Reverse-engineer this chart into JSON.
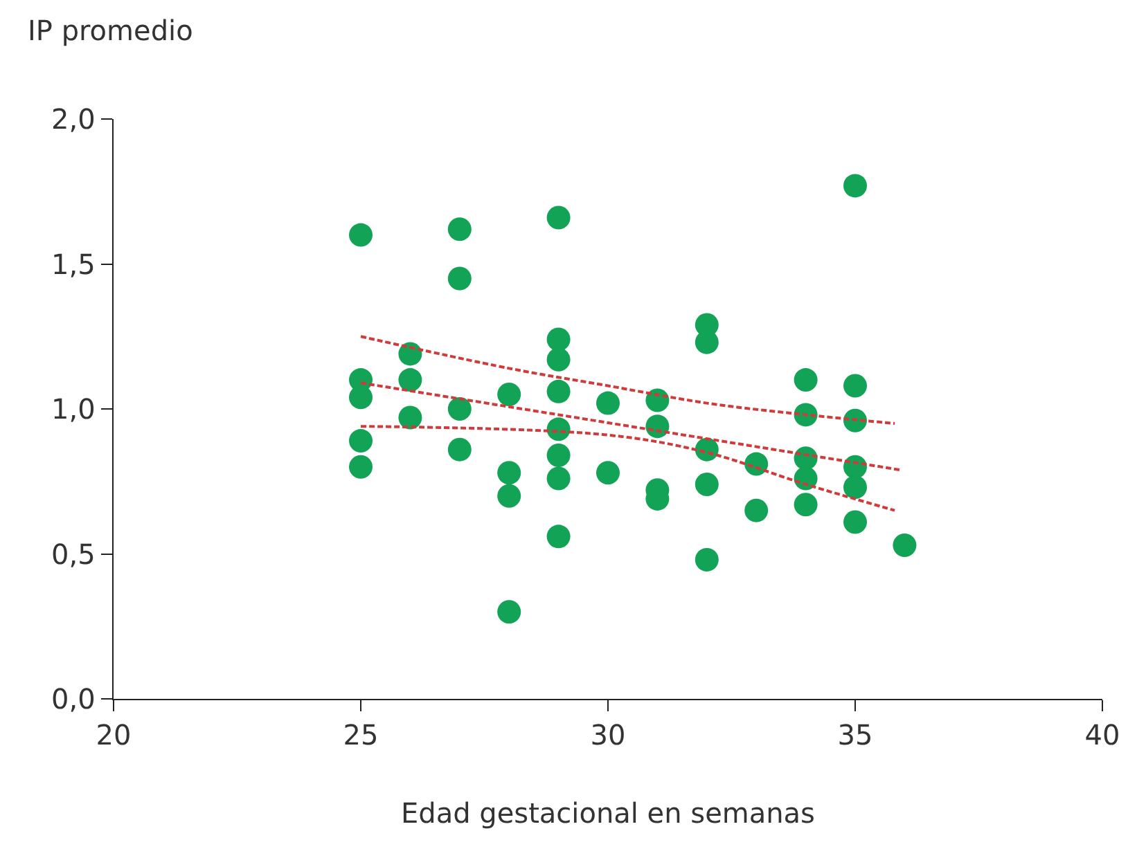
{
  "chart_data": {
    "type": "scatter",
    "xlabel": "Edad gestacional en semanas",
    "ylabel": "IP promedio",
    "xlim": [
      20,
      40
    ],
    "xticks": [
      20,
      25,
      30,
      35,
      40
    ],
    "ylim": [
      0,
      2
    ],
    "yticks": [
      {
        "value": 0,
        "label": "0,0"
      },
      {
        "value": 0.5,
        "label": "0,5"
      },
      {
        "value": 1,
        "label": "1,0"
      },
      {
        "value": 1.5,
        "label": "1,5"
      },
      {
        "value": 2,
        "label": "2,0"
      }
    ],
    "grid": false,
    "series": [
      {
        "marker": "circle",
        "color": "#12a356",
        "x": [
          25,
          25,
          25,
          25,
          25,
          26,
          26,
          26,
          27,
          27,
          27,
          27,
          28,
          28,
          28,
          28,
          29,
          29,
          29,
          29,
          29,
          29,
          29,
          29,
          30,
          30,
          31,
          31,
          31,
          31,
          32,
          32,
          32,
          32,
          32,
          33,
          33,
          34,
          34,
          34,
          34,
          34,
          35,
          35,
          35,
          35,
          35,
          35,
          36
        ],
        "values": [
          1.6,
          1.1,
          1.04,
          0.89,
          0.8,
          1.19,
          1.1,
          0.97,
          1.62,
          1.45,
          1.0,
          0.86,
          1.05,
          0.78,
          0.7,
          0.3,
          1.66,
          1.24,
          1.17,
          1.06,
          0.93,
          0.84,
          0.76,
          0.56,
          1.02,
          0.78,
          1.03,
          0.94,
          0.72,
          0.69,
          1.29,
          1.23,
          0.86,
          0.74,
          0.48,
          0.81,
          0.65,
          1.1,
          0.98,
          0.83,
          0.76,
          0.67,
          1.77,
          1.08,
          0.96,
          0.8,
          0.73,
          0.61,
          0.53
        ]
      },
      {
        "type": "line",
        "marker": "none",
        "line_style": "dashed",
        "color": "#d03a3a",
        "x": [
          25,
          35.9
        ],
        "values": [
          1.09,
          0.79
        ]
      },
      {
        "type": "line",
        "marker": "none",
        "line_style": "dashed",
        "color": "#d03a3a",
        "x": [
          25,
          28,
          30,
          32,
          34,
          35.8
        ],
        "values": [
          1.25,
          1.14,
          1.08,
          1.02,
          0.98,
          0.95
        ]
      },
      {
        "type": "line",
        "marker": "none",
        "line_style": "dashed",
        "color": "#d03a3a",
        "x": [
          25,
          30,
          32,
          34,
          35.8
        ],
        "values": [
          0.94,
          0.91,
          0.85,
          0.74,
          0.65
        ]
      }
    ]
  }
}
